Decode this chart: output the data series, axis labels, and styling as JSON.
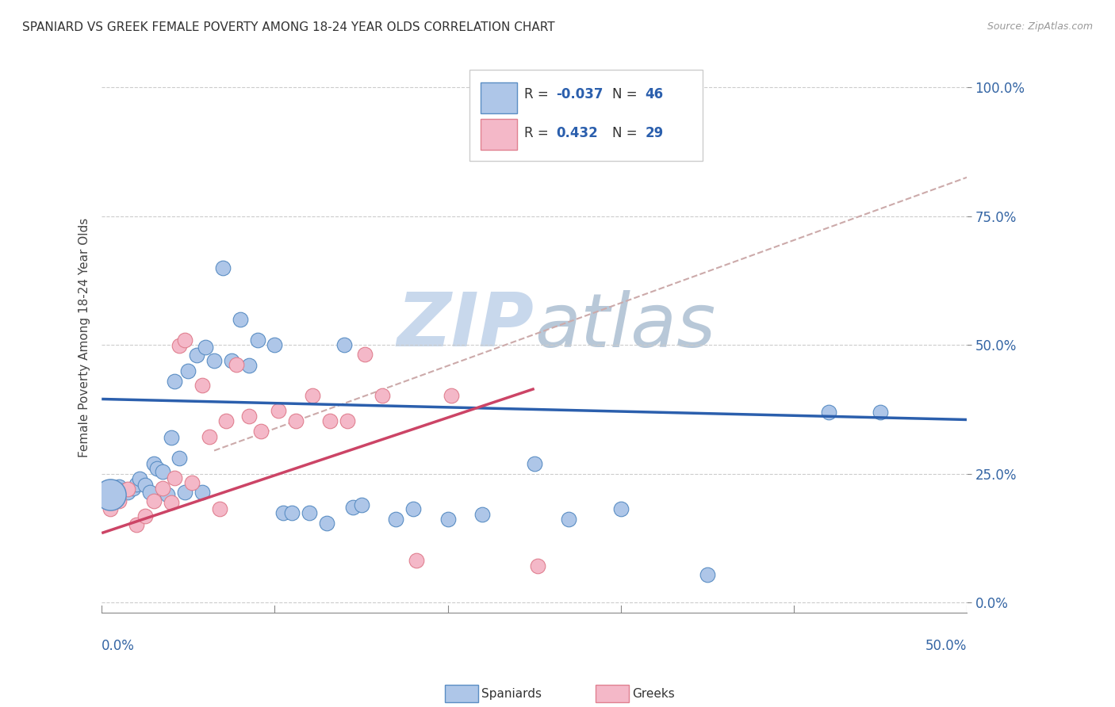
{
  "title": "SPANIARD VS GREEK FEMALE POVERTY AMONG 18-24 YEAR OLDS CORRELATION CHART",
  "source": "Source: ZipAtlas.com",
  "ylabel": "Female Poverty Among 18-24 Year Olds",
  "ytick_labels": [
    "0.0%",
    "25.0%",
    "50.0%",
    "75.0%",
    "100.0%"
  ],
  "ytick_values": [
    0.0,
    0.25,
    0.5,
    0.75,
    1.0
  ],
  "xlim": [
    0.0,
    0.5
  ],
  "ylim": [
    -0.02,
    1.05
  ],
  "spaniard_color": "#aec6e8",
  "greek_color": "#f4b8c8",
  "spaniard_edge_color": "#5b8ec4",
  "greek_edge_color": "#e08090",
  "spaniard_line_color": "#2b5fad",
  "greek_line_color": "#cc4466",
  "dashed_line_color": "#ccaaaa",
  "watermark_color": "#c8d8ec",
  "spaniards_x": [
    0.005,
    0.008,
    0.01,
    0.012,
    0.015,
    0.018,
    0.02,
    0.022,
    0.025,
    0.028,
    0.03,
    0.032,
    0.035,
    0.038,
    0.04,
    0.042,
    0.045,
    0.048,
    0.05,
    0.055,
    0.058,
    0.06,
    0.065,
    0.07,
    0.075,
    0.08,
    0.085,
    0.09,
    0.1,
    0.105,
    0.11,
    0.12,
    0.13,
    0.14,
    0.145,
    0.15,
    0.17,
    0.18,
    0.2,
    0.22,
    0.25,
    0.27,
    0.3,
    0.35,
    0.42,
    0.45
  ],
  "spaniards_y": [
    0.205,
    0.22,
    0.225,
    0.218,
    0.215,
    0.222,
    0.23,
    0.24,
    0.228,
    0.215,
    0.27,
    0.26,
    0.255,
    0.21,
    0.32,
    0.43,
    0.28,
    0.215,
    0.45,
    0.48,
    0.215,
    0.495,
    0.47,
    0.65,
    0.47,
    0.55,
    0.46,
    0.51,
    0.5,
    0.175,
    0.175,
    0.175,
    0.155,
    0.5,
    0.185,
    0.19,
    0.162,
    0.182,
    0.162,
    0.172,
    0.27,
    0.162,
    0.182,
    0.055,
    0.37,
    0.37
  ],
  "greeks_x": [
    0.005,
    0.01,
    0.015,
    0.02,
    0.025,
    0.03,
    0.035,
    0.04,
    0.042,
    0.045,
    0.048,
    0.052,
    0.058,
    0.062,
    0.068,
    0.072,
    0.078,
    0.085,
    0.092,
    0.102,
    0.112,
    0.122,
    0.132,
    0.142,
    0.152,
    0.162,
    0.182,
    0.202,
    0.252
  ],
  "greeks_y": [
    0.182,
    0.198,
    0.22,
    0.152,
    0.168,
    0.198,
    0.222,
    0.195,
    0.242,
    0.498,
    0.51,
    0.232,
    0.422,
    0.322,
    0.182,
    0.352,
    0.462,
    0.362,
    0.332,
    0.372,
    0.352,
    0.402,
    0.352,
    0.352,
    0.482,
    0.402,
    0.082,
    0.402,
    0.072
  ],
  "spaniard_line_x0": 0.0,
  "spaniard_line_x1": 0.5,
  "spaniard_line_y0": 0.395,
  "spaniard_line_y1": 0.355,
  "greek_line_x0": 0.0,
  "greek_line_x1": 0.25,
  "greek_line_y0": 0.135,
  "greek_line_y1": 0.415,
  "dashed_line_x0": 0.065,
  "dashed_line_x1": 0.5,
  "dashed_line_y0": 0.295,
  "dashed_line_y1": 0.825
}
